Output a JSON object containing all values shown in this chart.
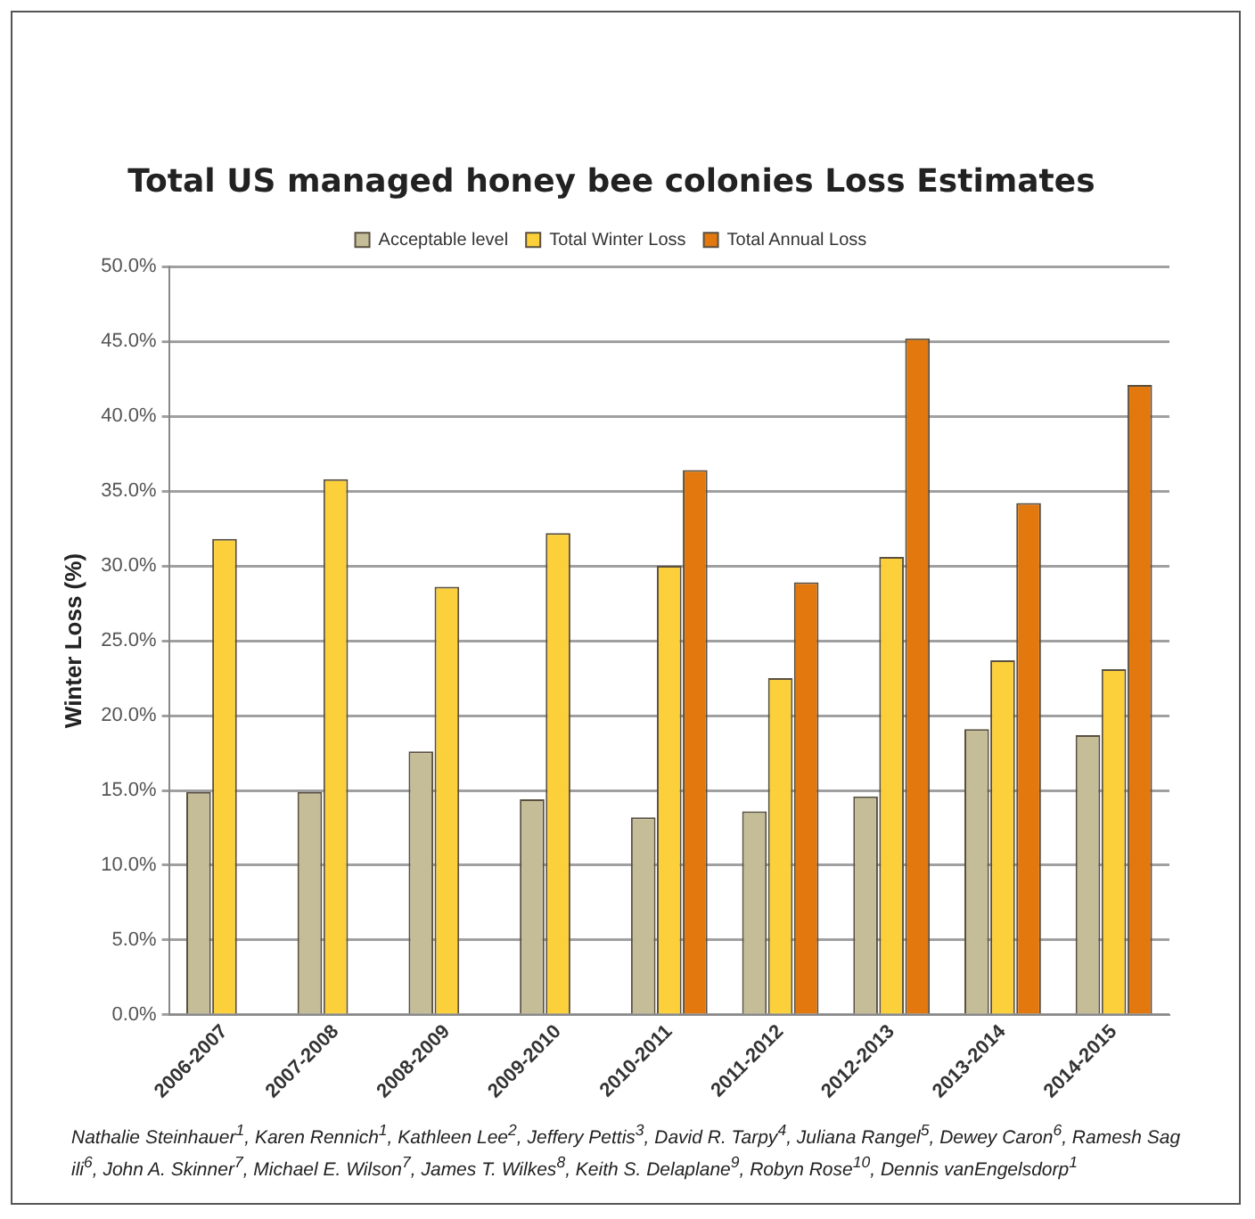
{
  "chart_data": {
    "type": "bar",
    "title": "Total US managed honey bee colonies Loss Estimates",
    "ylabel": "Winter Loss (%)",
    "categories": [
      "2006-2007",
      "2007-2008",
      "2008-2009",
      "2009-2010",
      "2010-2011",
      "2011-2012",
      "2012-2013",
      "2013-2014",
      "2014-2015"
    ],
    "series": [
      {
        "name": "Acceptable level",
        "color": "#c4bd97",
        "values": [
          14.9,
          14.9,
          17.6,
          14.4,
          13.2,
          13.6,
          14.6,
          19.1,
          18.7
        ]
      },
      {
        "name": "Total Winter Loss",
        "color": "#fcd03a",
        "values": [
          31.8,
          35.8,
          28.6,
          32.2,
          30.0,
          22.5,
          30.6,
          23.7,
          23.1
        ]
      },
      {
        "name": "Total Annual Loss",
        "color": "#e2780e",
        "values": [
          null,
          null,
          null,
          null,
          36.4,
          28.9,
          45.2,
          34.2,
          42.1
        ]
      }
    ],
    "ylim": [
      0,
      50
    ],
    "yticks": [
      {
        "value": 0,
        "label": "0.0%"
      },
      {
        "value": 5,
        "label": "5.0%"
      },
      {
        "value": 10,
        "label": "10.0%"
      },
      {
        "value": 15,
        "label": "15.0%"
      },
      {
        "value": 20,
        "label": "20.0%"
      },
      {
        "value": 25,
        "label": "25.0%"
      },
      {
        "value": 30,
        "label": "30.0%"
      },
      {
        "value": 35,
        "label": "35.0%"
      },
      {
        "value": 40,
        "label": "40.0%"
      },
      {
        "value": 45,
        "label": "45.0%"
      },
      {
        "value": 50,
        "label": "50.0%"
      }
    ],
    "grid": "y",
    "legend": "top",
    "annotations": [
      "Nathalie Steinhauer$^{1}$, Karen Rennich$^{1}$, Kathleen Lee$^{2}$, Jeffery Pettis$^{3}$, David R. Tarpy$^{4}$, Juliana Rangel$^{5}$, Dewey Caron$^{6}$, Ramesh Sag ili$^{6}$, John A. Skinner$^{7}$, Michael E. Wilson$^{7}$, James T. Wilkes$^{8}$, Keith S. Delaplane$^{9}$, Robyn Rose$^{10}$, Dennis vanEngelsdorp$^{1}$"
    ]
  }
}
